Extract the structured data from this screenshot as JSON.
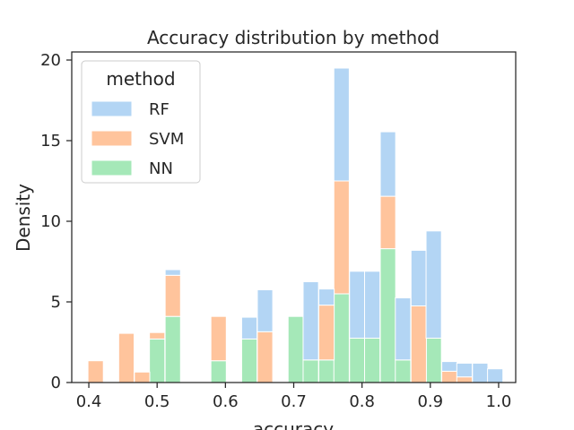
{
  "chart_data": {
    "type": "bar",
    "stacked": true,
    "title": "Accuracy distribution by method",
    "xlabel": "accuracy",
    "ylabel": "Density",
    "xlim": [
      0.375,
      1.025
    ],
    "ylim": [
      0,
      20.5
    ],
    "xticks": [
      "0.4",
      "0.5",
      "0.6",
      "0.7",
      "0.8",
      "0.9",
      "1.0"
    ],
    "xtick_values": [
      0.4,
      0.5,
      0.6,
      0.7,
      0.8,
      0.9,
      1.0
    ],
    "yticks": [
      "0",
      "5",
      "10",
      "15",
      "20"
    ],
    "ytick_values": [
      0,
      5,
      10,
      15,
      20
    ],
    "grid": false,
    "legend": {
      "title": "method",
      "placement": "top-left"
    },
    "bin_width": 0.0225,
    "x": [
      0.41,
      0.455,
      0.478,
      0.5,
      0.523,
      0.59,
      0.635,
      0.658,
      0.703,
      0.725,
      0.748,
      0.77,
      0.793,
      0.815,
      0.838,
      0.86,
      0.883,
      0.905,
      0.928,
      0.95,
      0.973,
      0.995
    ],
    "series": [
      {
        "name": "NN",
        "color": "#a5e8b8",
        "values": [
          0,
          0,
          0,
          2.7,
          4.1,
          1.35,
          2.7,
          0,
          4.1,
          1.4,
          1.4,
          5.5,
          2.75,
          2.75,
          8.3,
          1.4,
          0,
          2.75,
          0,
          0,
          0,
          0
        ]
      },
      {
        "name": "SVM",
        "color": "#ffc49c",
        "values": [
          1.35,
          3.05,
          0.65,
          0.4,
          2.55,
          2.75,
          0,
          3.15,
          0,
          0,
          3.4,
          7.0,
          0,
          0,
          3.25,
          0,
          4.75,
          0,
          0.7,
          0.35,
          0,
          0
        ]
      },
      {
        "name": "RF",
        "color": "#b3d5f4",
        "values": [
          0,
          0,
          0,
          0,
          0.35,
          0,
          1.35,
          2.6,
          0,
          4.85,
          1.0,
          7.0,
          4.15,
          4.15,
          4.0,
          3.85,
          3.45,
          6.65,
          0.6,
          0.85,
          1.2,
          0.85
        ]
      }
    ]
  }
}
